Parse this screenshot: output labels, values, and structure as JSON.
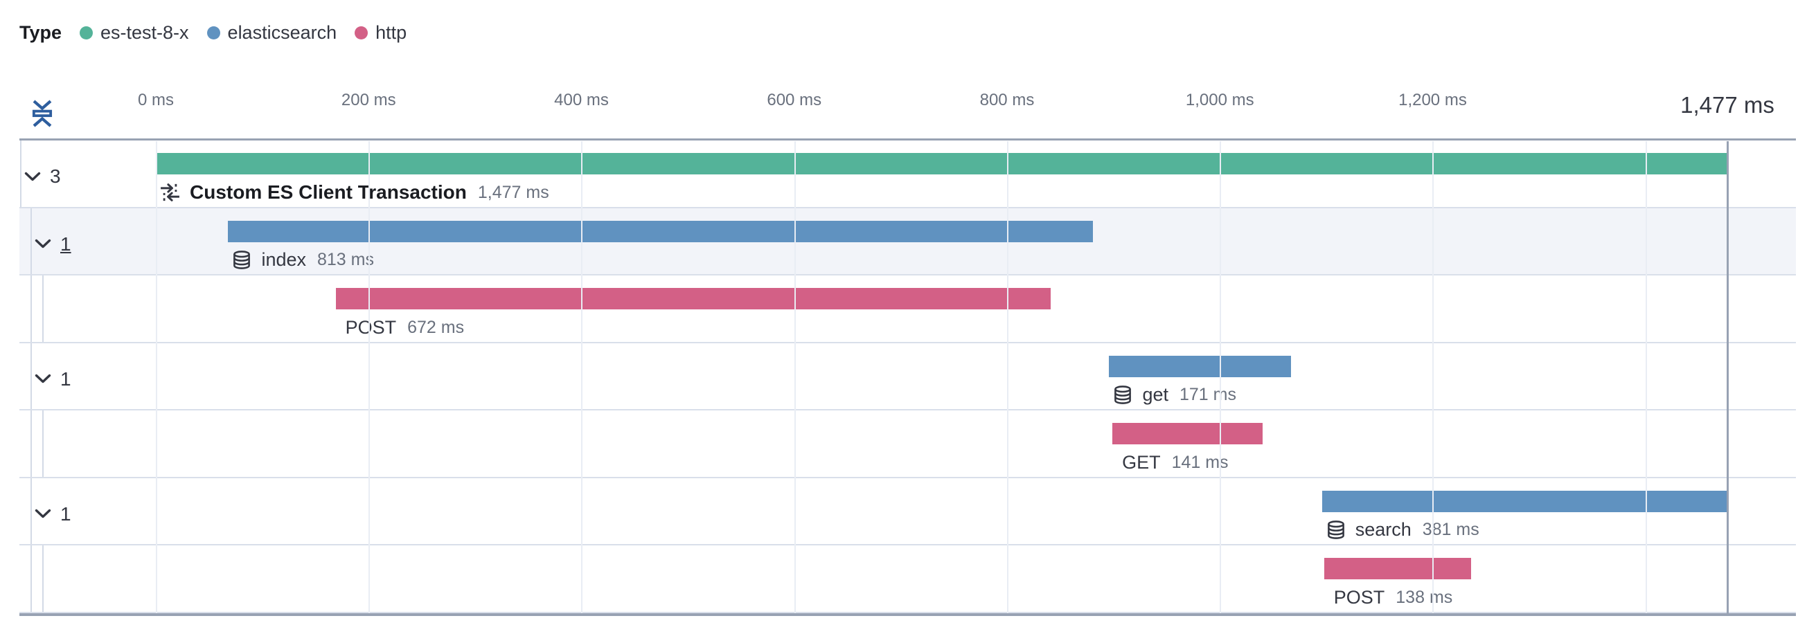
{
  "legend": {
    "title": "Type",
    "items": [
      {
        "label": "es-test-8-x",
        "color": "#54B399"
      },
      {
        "label": "elasticsearch",
        "color": "#6092C0"
      },
      {
        "label": "http",
        "color": "#D36086"
      }
    ]
  },
  "axis": {
    "tick_labels": [
      "0 ms",
      "200 ms",
      "400 ms",
      "600 ms",
      "800 ms",
      "1,000 ms",
      "1,200 ms"
    ],
    "tick_values_ms": [
      0,
      200,
      400,
      600,
      800,
      1000,
      1200
    ],
    "gridline_values_ms": [
      0,
      200,
      400,
      600,
      800,
      1000,
      1200,
      1400
    ],
    "total_label": "1,477 ms",
    "total_ms": 1477
  },
  "icons": {
    "fold_vertical": "fold-vertical-icon",
    "transaction": "merge-icon",
    "database": "database-icon",
    "accordion": "chevron-down-icon"
  },
  "chart_data": {
    "type": "bar",
    "variant": "trace-waterfall",
    "unit": "ms",
    "xlim": [
      0,
      1477
    ],
    "rows": [
      {
        "kind": "transaction",
        "level": 0,
        "toggle_count": "3",
        "toggle_underlined": false,
        "icon": "merge-icon",
        "name": "Custom ES Client Transaction",
        "duration_label": "1,477 ms",
        "start_ms": 0,
        "duration_ms": 1477,
        "color": "#54B399",
        "highlighted": false
      },
      {
        "kind": "span-group",
        "level": 1,
        "toggle_count": "1",
        "toggle_underlined": true,
        "icon": "database-icon",
        "name": "index",
        "duration_label": "813 ms",
        "start_ms": 68,
        "duration_ms": 813,
        "color": "#6092C0",
        "highlighted": true
      },
      {
        "kind": "span",
        "level": 2,
        "toggle_count": null,
        "toggle_underlined": false,
        "icon": null,
        "name": "POST",
        "duration_label": "672 ms",
        "start_ms": 169,
        "duration_ms": 672,
        "color": "#D36086",
        "highlighted": false
      },
      {
        "kind": "span-group",
        "level": 1,
        "toggle_count": "1",
        "toggle_underlined": false,
        "icon": "database-icon",
        "name": "get",
        "duration_label": "171 ms",
        "start_ms": 896,
        "duration_ms": 171,
        "color": "#6092C0",
        "highlighted": false
      },
      {
        "kind": "span",
        "level": 2,
        "toggle_count": null,
        "toggle_underlined": false,
        "icon": null,
        "name": "GET",
        "duration_label": "141 ms",
        "start_ms": 899,
        "duration_ms": 141,
        "color": "#D36086",
        "highlighted": false
      },
      {
        "kind": "span-group",
        "level": 1,
        "toggle_count": "1",
        "toggle_underlined": false,
        "icon": "database-icon",
        "name": "search",
        "duration_label": "381 ms",
        "start_ms": 1096,
        "duration_ms": 381,
        "color": "#6092C0",
        "highlighted": false
      },
      {
        "kind": "span",
        "level": 2,
        "toggle_count": null,
        "toggle_underlined": false,
        "icon": null,
        "name": "POST",
        "duration_label": "138 ms",
        "start_ms": 1098,
        "duration_ms": 138,
        "color": "#D36086",
        "highlighted": false
      }
    ]
  },
  "colors": {
    "grid": "#e9edf4",
    "row_border": "#d9dfea",
    "nest_border": "#d3dae6",
    "frame_border": "#98a2b3",
    "highlight_row_bg": "#f2f4f9",
    "text_dark": "#343741",
    "text_title": "#1a1c21",
    "text_muted": "#69707d",
    "fold_icon": "#2e5e9e"
  }
}
